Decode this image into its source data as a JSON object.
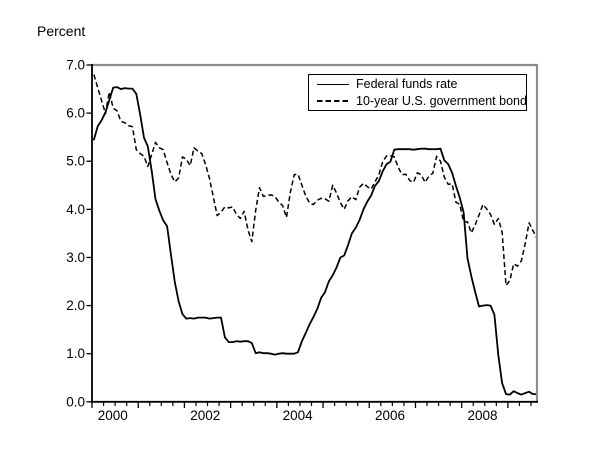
{
  "chart_data": {
    "type": "line",
    "title": "",
    "unit_label": "Percent",
    "xlabel": "",
    "ylabel": "Percent",
    "ylim": [
      0.0,
      7.0
    ],
    "x_start_year": 2000,
    "x_end_year_fraction": 2009.63,
    "grid": false,
    "legend_position": "top-right",
    "y_tick_labels": [
      "0.0",
      "1.0",
      "2.0",
      "3.0",
      "4.0",
      "5.0",
      "6.0",
      "7.0"
    ],
    "y_tick_values": [
      0,
      1,
      2,
      3,
      4,
      5,
      6,
      7
    ],
    "x_tick_labels": [
      "2000",
      "2002",
      "2004",
      "2006",
      "2008"
    ],
    "x_label_years": [
      2000,
      2002,
      2004,
      2006,
      2008
    ],
    "x_major_tick_years": [
      2000,
      2001,
      2002,
      2003,
      2004,
      2005,
      2006,
      2007,
      2008,
      2009
    ],
    "x_minor_tick": "quarterly",
    "series": [
      {
        "name": "Federal funds rate",
        "line_style": "solid",
        "color": "#000000",
        "frequency": "monthly",
        "values_by_year": {
          "2000": [
            5.45,
            5.73,
            5.85,
            6.02,
            6.27,
            6.53,
            6.54,
            6.5,
            6.52,
            6.51,
            6.51,
            6.4
          ],
          "2001": [
            5.98,
            5.49,
            5.31,
            4.8,
            4.21,
            3.97,
            3.77,
            3.65,
            3.07,
            2.49,
            2.09,
            1.82
          ],
          "2002": [
            1.73,
            1.74,
            1.73,
            1.75,
            1.75,
            1.75,
            1.73,
            1.74,
            1.75,
            1.75,
            1.34,
            1.24
          ],
          "2003": [
            1.24,
            1.26,
            1.25,
            1.26,
            1.26,
            1.22,
            1.01,
            1.03,
            1.01,
            1.01,
            1.0,
            0.98
          ],
          "2004": [
            1.0,
            1.01,
            1.0,
            1.0,
            1.0,
            1.03,
            1.26,
            1.43,
            1.61,
            1.76,
            1.93,
            2.16
          ],
          "2005": [
            2.28,
            2.5,
            2.63,
            2.79,
            3.0,
            3.04,
            3.26,
            3.5,
            3.62,
            3.78,
            4.0,
            4.16
          ],
          "2006": [
            4.29,
            4.49,
            4.59,
            4.79,
            4.94,
            4.99,
            5.24,
            5.25,
            5.25,
            5.25,
            5.25,
            5.24
          ],
          "2007": [
            5.25,
            5.26,
            5.26,
            5.25,
            5.25,
            5.25,
            5.26,
            5.02,
            4.94,
            4.76,
            4.49,
            4.24
          ],
          "2008": [
            3.94,
            2.98,
            2.61,
            2.28,
            1.98,
            2.0,
            2.01,
            2.0,
            1.81,
            0.97,
            0.39,
            0.16
          ],
          "2009": [
            0.15,
            0.22,
            0.18,
            0.15,
            0.18,
            0.21,
            0.16,
            0.16
          ]
        }
      },
      {
        "name": "10-year U.S. government bond",
        "line_style": "dashed",
        "color": "#000000",
        "frequency": "monthly",
        "values_by_year": {
          "2000": [
            6.8,
            6.52,
            6.26,
            5.99,
            6.44,
            6.1,
            6.05,
            5.83,
            5.8,
            5.74,
            5.72,
            5.24
          ],
          "2001": [
            5.16,
            5.1,
            4.89,
            5.14,
            5.39,
            5.28,
            5.24,
            4.97,
            4.73,
            4.57,
            4.65,
            5.09
          ],
          "2002": [
            5.04,
            4.91,
            5.28,
            5.21,
            5.16,
            4.93,
            4.65,
            4.26,
            3.87,
            3.94,
            4.05,
            4.03
          ],
          "2003": [
            4.05,
            3.9,
            3.81,
            3.96,
            3.57,
            3.33,
            3.98,
            4.45,
            4.27,
            4.29,
            4.3,
            4.27
          ],
          "2004": [
            4.15,
            4.08,
            3.83,
            4.35,
            4.72,
            4.73,
            4.5,
            4.28,
            4.13,
            4.1,
            4.19,
            4.23
          ],
          "2005": [
            4.22,
            4.17,
            4.5,
            4.34,
            4.14,
            4.0,
            4.18,
            4.26,
            4.2,
            4.46,
            4.54,
            4.47
          ],
          "2006": [
            4.42,
            4.57,
            4.72,
            4.99,
            5.11,
            5.11,
            5.09,
            4.88,
            4.72,
            4.73,
            4.6,
            4.56
          ],
          "2007": [
            4.76,
            4.72,
            4.56,
            4.69,
            4.75,
            5.1,
            5.0,
            4.67,
            4.52,
            4.53,
            4.15,
            4.1
          ],
          "2008": [
            3.74,
            3.74,
            3.51,
            3.68,
            3.88,
            4.1,
            4.01,
            3.89,
            3.69,
            3.81,
            3.53,
            2.42
          ],
          "2009": [
            2.52,
            2.87,
            2.82,
            2.93,
            3.29,
            3.72,
            3.56,
            3.4
          ]
        }
      }
    ],
    "frame_colors": {
      "top_right_border": "#8c8c8c",
      "bottom_left_axis": "#000000",
      "tick": "#000000",
      "text": "#000000"
    }
  }
}
